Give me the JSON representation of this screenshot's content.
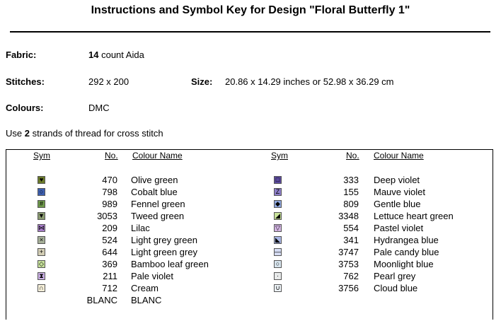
{
  "title": "Instructions and Symbol Key for Design \"Floral Butterfly 1\"",
  "fabric": {
    "label": "Fabric:",
    "count": "14",
    "text": "count Aida"
  },
  "stitches": {
    "label": "Stitches:",
    "value": "292 x 200"
  },
  "size": {
    "label": "Size:",
    "value": "20.86 x 14.29 inches or 52.98 x 36.29 cm"
  },
  "colours": {
    "label": "Colours:",
    "value": "DMC"
  },
  "strands": {
    "pre": "Use",
    "count": "2",
    "post": "strands of thread for cross stitch"
  },
  "headers": {
    "sym": "Sym",
    "no": "No.",
    "name": "Colour Name"
  },
  "left": [
    {
      "no": "470",
      "name": "Olive green",
      "color": "#6b7b2a",
      "glyph": "♥"
    },
    {
      "no": "798",
      "name": "Cobalt blue",
      "color": "#3d5fb0",
      "glyph": "○"
    },
    {
      "no": "989",
      "name": "Fennel green",
      "color": "#6f9a4b",
      "glyph": "#"
    },
    {
      "no": "3053",
      "name": "Tweed green",
      "color": "#8a9b70",
      "glyph": "▼"
    },
    {
      "no": "209",
      "name": "Lilac",
      "color": "#a77dc8",
      "glyph": "⋈"
    },
    {
      "no": "524",
      "name": "Light grey green",
      "color": "#a6b099",
      "glyph": "×"
    },
    {
      "no": "644",
      "name": "Light green grey",
      "color": "#d2cdb4",
      "glyph": "+"
    },
    {
      "no": "369",
      "name": "Bamboo leaf green",
      "color": "#c5df9a",
      "glyph": "◇"
    },
    {
      "no": "211",
      "name": "Pale violet",
      "color": "#c9aee3",
      "glyph": "⧗"
    },
    {
      "no": "712",
      "name": "Cream",
      "color": "#f5efd9",
      "glyph": "∩"
    },
    {
      "no": "BLANC",
      "name": "BLANC",
      "color": "#ffffff",
      "glyph": ""
    }
  ],
  "right": [
    {
      "no": "333",
      "name": "Deep violet",
      "color": "#5c4a9e",
      "glyph": "□"
    },
    {
      "no": "155",
      "name": "Mauve violet",
      "color": "#8d7ec9",
      "glyph": "Z"
    },
    {
      "no": "809",
      "name": "Gentle blue",
      "color": "#8ea6dd",
      "glyph": "◆"
    },
    {
      "no": "3348",
      "name": "Lettuce heart green",
      "color": "#c9e39a",
      "glyph": "◢"
    },
    {
      "no": "554",
      "name": "Pastel violet",
      "color": "#d3b4e3",
      "glyph": "▽"
    },
    {
      "no": "341",
      "name": "Hydrangea blue",
      "color": "#a9b6e5",
      "glyph": "◣"
    },
    {
      "no": "3747",
      "name": "Pale candy blue",
      "color": "#d5dcf3",
      "glyph": "—"
    },
    {
      "no": "3753",
      "name": "Moonlight blue",
      "color": "#d8e5ee",
      "glyph": "○"
    },
    {
      "no": "762",
      "name": "Pearl grey",
      "color": "#e8eaea",
      "glyph": "·"
    },
    {
      "no": "3756",
      "name": "Cloud blue",
      "color": "#eef4f8",
      "glyph": "∪"
    }
  ]
}
